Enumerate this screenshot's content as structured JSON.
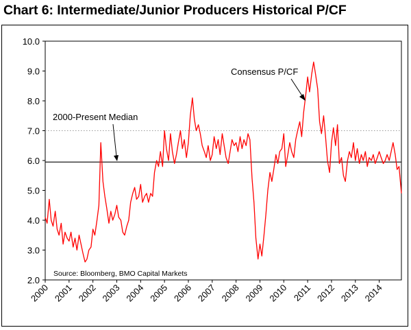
{
  "chart_data": {
    "type": "line",
    "title": "Chart 6: Intermediate/Junior Producers Historical P/CF",
    "xlabel": "",
    "ylabel": "",
    "xlim": [
      2000,
      2014.93
    ],
    "ylim": [
      2.0,
      10.0
    ],
    "y_ticks": [
      "2.0",
      "3.0",
      "4.0",
      "5.0",
      "6.0",
      "7.0",
      "8.0",
      "9.0",
      "10.0"
    ],
    "x_ticks": [
      "2000",
      "2001",
      "2002",
      "2003",
      "2004",
      "2005",
      "2006",
      "2007",
      "2008",
      "2009",
      "2010",
      "2011",
      "2012",
      "2013",
      "2014"
    ],
    "grid": false,
    "reference_lines": [
      {
        "label": "2000-Present Median",
        "value": 5.95,
        "style": "solid"
      },
      {
        "label": "",
        "value": 7.0,
        "style": "dotted"
      }
    ],
    "annotations": [
      {
        "text": "Consensus P/CF"
      },
      {
        "text": "2000-Present Median"
      },
      {
        "text": "Source: Bloomberg, BMO Capital Markets"
      }
    ],
    "series": [
      {
        "name": "Consensus P/CF",
        "color": "#ff0000",
        "x": [
          2000.0,
          2000.08,
          2000.17,
          2000.25,
          2000.33,
          2000.42,
          2000.5,
          2000.58,
          2000.67,
          2000.75,
          2000.83,
          2000.92,
          2001.0,
          2001.08,
          2001.17,
          2001.25,
          2001.33,
          2001.42,
          2001.5,
          2001.58,
          2001.67,
          2001.75,
          2001.83,
          2001.92,
          2002.0,
          2002.08,
          2002.17,
          2002.25,
          2002.33,
          2002.42,
          2002.5,
          2002.58,
          2002.67,
          2002.75,
          2002.83,
          2002.92,
          2003.0,
          2003.08,
          2003.17,
          2003.25,
          2003.33,
          2003.42,
          2003.5,
          2003.58,
          2003.67,
          2003.75,
          2003.83,
          2003.92,
          2004.0,
          2004.08,
          2004.17,
          2004.25,
          2004.33,
          2004.42,
          2004.5,
          2004.58,
          2004.67,
          2004.75,
          2004.83,
          2004.92,
          2005.0,
          2005.08,
          2005.17,
          2005.25,
          2005.33,
          2005.42,
          2005.5,
          2005.58,
          2005.67,
          2005.75,
          2005.83,
          2005.92,
          2006.0,
          2006.08,
          2006.17,
          2006.25,
          2006.33,
          2006.42,
          2006.5,
          2006.58,
          2006.67,
          2006.75,
          2006.83,
          2006.92,
          2007.0,
          2007.08,
          2007.17,
          2007.25,
          2007.33,
          2007.42,
          2007.5,
          2007.58,
          2007.67,
          2007.75,
          2007.83,
          2007.92,
          2008.0,
          2008.08,
          2008.17,
          2008.25,
          2008.33,
          2008.42,
          2008.5,
          2008.58,
          2008.67,
          2008.75,
          2008.83,
          2008.92,
          2009.0,
          2009.08,
          2009.17,
          2009.25,
          2009.33,
          2009.42,
          2009.5,
          2009.58,
          2009.67,
          2009.75,
          2009.83,
          2009.92,
          2010.0,
          2010.08,
          2010.17,
          2010.25,
          2010.33,
          2010.42,
          2010.5,
          2010.58,
          2010.67,
          2010.75,
          2010.83,
          2010.92,
          2011.0,
          2011.08,
          2011.17,
          2011.25,
          2011.33,
          2011.42,
          2011.5,
          2011.58,
          2011.67,
          2011.75,
          2011.83,
          2011.92,
          2012.0,
          2012.08,
          2012.17,
          2012.25,
          2012.33,
          2012.42,
          2012.5,
          2012.58,
          2012.67,
          2012.75,
          2012.83,
          2012.92,
          2013.0,
          2013.08,
          2013.17,
          2013.25,
          2013.33,
          2013.42,
          2013.5,
          2013.58,
          2013.67,
          2013.75,
          2013.83,
          2013.92,
          2014.0,
          2014.08,
          2014.17,
          2014.25,
          2014.33,
          2014.42,
          2014.5,
          2014.58,
          2014.67,
          2014.75,
          2014.83,
          2014.93
        ],
        "values": [
          4.1,
          3.9,
          4.7,
          4.0,
          3.8,
          4.3,
          3.7,
          3.5,
          3.9,
          3.2,
          3.6,
          3.4,
          3.3,
          3.6,
          3.1,
          3.4,
          3.0,
          3.5,
          3.2,
          2.9,
          2.6,
          2.7,
          3.0,
          3.1,
          3.7,
          3.5,
          4.0,
          4.5,
          6.6,
          5.3,
          4.8,
          4.4,
          3.9,
          4.3,
          4.0,
          4.2,
          4.5,
          4.1,
          4.0,
          3.6,
          3.5,
          3.8,
          4.0,
          4.6,
          4.9,
          5.1,
          4.7,
          4.8,
          5.2,
          4.6,
          4.8,
          4.9,
          4.6,
          4.9,
          4.8,
          5.6,
          6.0,
          5.8,
          6.3,
          5.8,
          7.0,
          6.4,
          6.0,
          6.9,
          6.3,
          5.9,
          6.2,
          6.6,
          7.0,
          6.4,
          6.7,
          6.1,
          6.6,
          7.5,
          8.1,
          7.4,
          7.0,
          7.2,
          6.9,
          6.5,
          6.3,
          6.1,
          6.5,
          6.0,
          6.2,
          6.8,
          6.4,
          6.7,
          6.2,
          6.9,
          6.5,
          6.1,
          5.9,
          6.3,
          6.7,
          6.5,
          6.6,
          6.3,
          6.8,
          6.4,
          6.7,
          6.5,
          6.9,
          6.7,
          5.4,
          4.6,
          3.4,
          2.7,
          3.2,
          2.8,
          3.5,
          4.2,
          5.0,
          5.6,
          5.3,
          5.7,
          6.2,
          5.9,
          6.3,
          6.4,
          6.9,
          5.8,
          6.2,
          6.6,
          6.3,
          6.1,
          6.7,
          7.0,
          7.3,
          6.8,
          7.6,
          8.2,
          8.8,
          8.3,
          8.9,
          9.3,
          8.9,
          8.4,
          7.3,
          6.9,
          7.5,
          6.8,
          6.0,
          5.6,
          6.6,
          7.1,
          6.5,
          7.2,
          5.9,
          6.1,
          5.5,
          5.3,
          6.0,
          6.3,
          6.1,
          6.6,
          6.0,
          6.4,
          5.9,
          6.2,
          6.0,
          6.3,
          5.8,
          6.1,
          6.0,
          6.2,
          5.9,
          6.1,
          6.3,
          6.1,
          5.9,
          6.0,
          6.2,
          6.0,
          6.3,
          6.6,
          6.2,
          5.7,
          5.8,
          4.9
        ]
      }
    ]
  }
}
